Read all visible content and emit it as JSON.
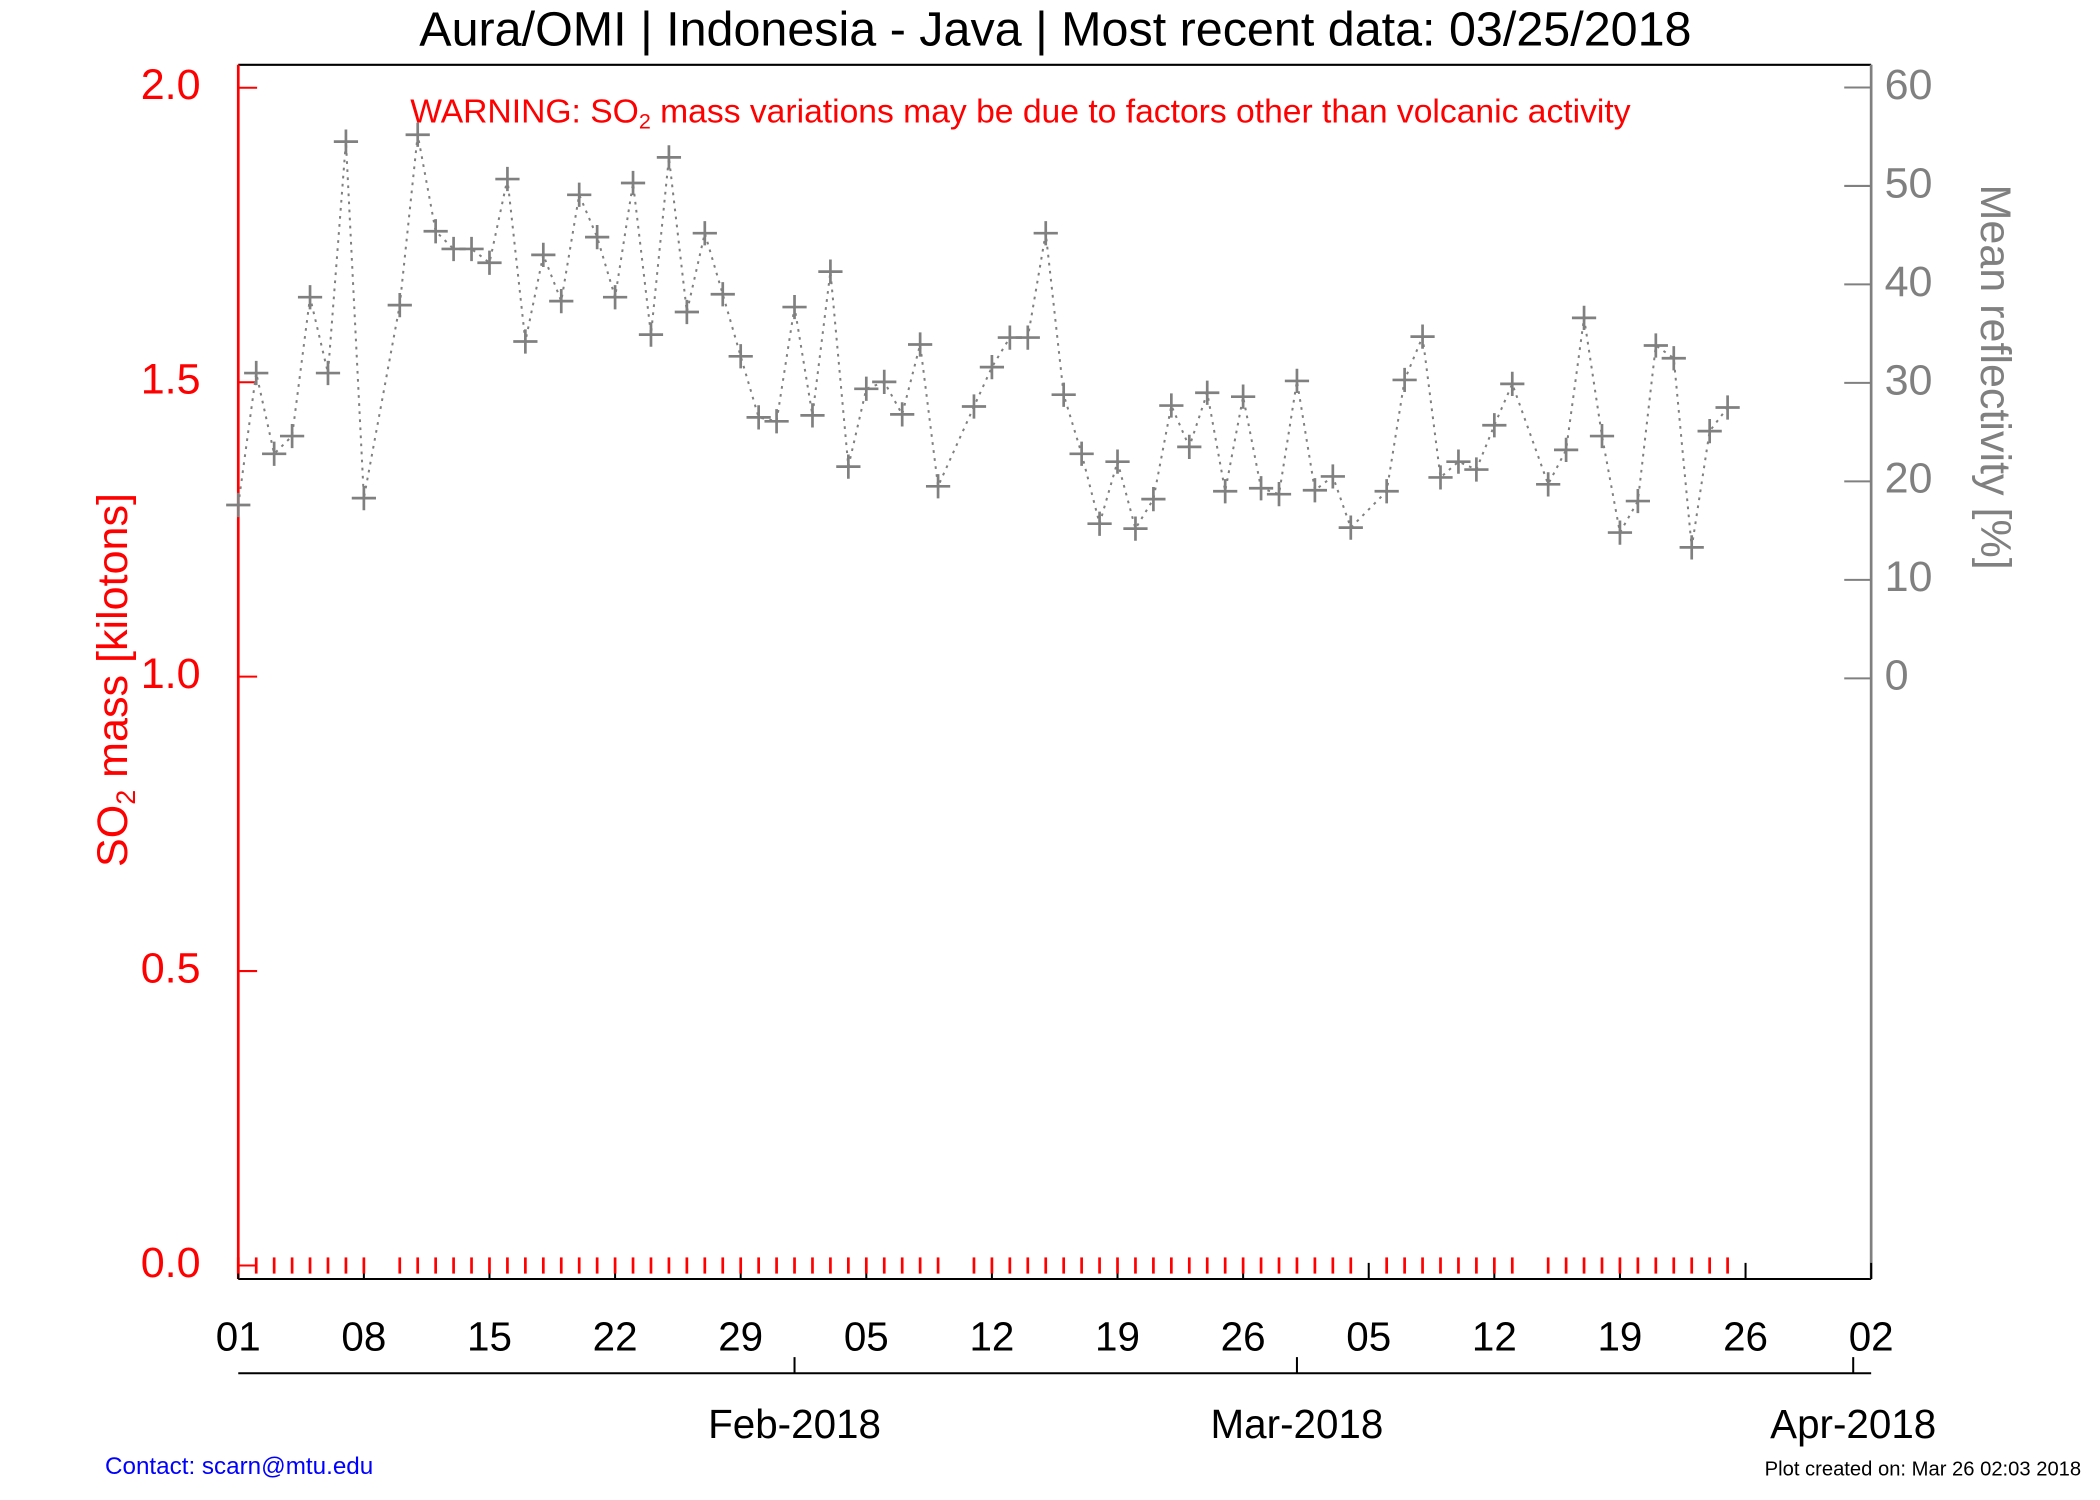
{
  "chart_data": {
    "type": "line",
    "title": "Aura/OMI | Indonesia - Java | Most recent data: 03/25/2018",
    "warning": [
      "WARNING: SO",
      "2",
      " mass variations may be due to factors other than volcanic activity"
    ],
    "y_label": [
      "SO",
      "2",
      " mass [kilotons]"
    ],
    "y2_label": "Mean reflectivity [%]",
    "contact": "Contact: scarn@mtu.edu",
    "created": "Plot created on: Mar 26 02:03 2018",
    "x": [
      "2018-01-01",
      "2018-01-02",
      "2018-01-03",
      "2018-01-04",
      "2018-01-05",
      "2018-01-06",
      "2018-01-07",
      "2018-01-08",
      "2018-01-10",
      "2018-01-11",
      "2018-01-12",
      "2018-01-13",
      "2018-01-14",
      "2018-01-15",
      "2018-01-16",
      "2018-01-17",
      "2018-01-18",
      "2018-01-19",
      "2018-01-20",
      "2018-01-21",
      "2018-01-22",
      "2018-01-23",
      "2018-01-24",
      "2018-01-25",
      "2018-01-26",
      "2018-01-27",
      "2018-01-28",
      "2018-01-29",
      "2018-01-30",
      "2018-01-31",
      "2018-02-01",
      "2018-02-02",
      "2018-02-03",
      "2018-02-04",
      "2018-02-05",
      "2018-02-06",
      "2018-02-07",
      "2018-02-08",
      "2018-02-09",
      "2018-02-11",
      "2018-02-12",
      "2018-02-13",
      "2018-02-14",
      "2018-02-15",
      "2018-02-16",
      "2018-02-17",
      "2018-02-18",
      "2018-02-19",
      "2018-02-20",
      "2018-02-21",
      "2018-02-22",
      "2018-02-23",
      "2018-02-24",
      "2018-02-25",
      "2018-02-26",
      "2018-02-27",
      "2018-02-28",
      "2018-03-01",
      "2018-03-02",
      "2018-03-03",
      "2018-03-04",
      "2018-03-06",
      "2018-03-07",
      "2018-03-08",
      "2018-03-09",
      "2018-03-10",
      "2018-03-11",
      "2018-03-12",
      "2018-03-13",
      "2018-03-15",
      "2018-03-16",
      "2018-03-17",
      "2018-03-18",
      "2018-03-19",
      "2018-03-20",
      "2018-03-21",
      "2018-03-22",
      "2018-03-23",
      "2018-03-24",
      "2018-03-25"
    ],
    "series": [
      {
        "color": "#ff0000",
        "values": [
          0,
          0,
          0,
          0,
          0,
          0,
          0,
          0,
          0,
          0,
          0,
          0,
          0,
          0,
          0,
          0,
          0,
          0,
          0,
          0,
          0,
          0,
          0,
          0,
          0,
          0,
          0,
          0,
          0,
          0,
          0,
          0,
          0,
          0,
          0,
          0,
          0,
          0,
          0,
          0,
          0,
          0,
          0,
          0,
          0,
          0,
          0,
          0,
          0,
          0,
          0,
          0,
          0,
          0,
          0,
          0,
          0,
          0,
          0,
          0,
          0,
          0,
          0,
          0,
          0,
          0,
          0,
          0,
          0,
          0,
          0,
          0,
          0,
          0,
          0,
          0,
          0,
          0,
          0,
          0
        ]
      },
      {
        "color": "#808080",
        "axis": "y2",
        "values": [
          17.6,
          31.0,
          22.8,
          24.6,
          38.7,
          31.0,
          54.5,
          18.3,
          37.9,
          55.2,
          45.4,
          43.6,
          43.6,
          42.2,
          50.7,
          34.2,
          43.0,
          38.3,
          49.1,
          44.8,
          38.7,
          50.3,
          34.9,
          52.9,
          37.2,
          45.2,
          39.0,
          32.7,
          26.5,
          26.1,
          37.7,
          26.7,
          41.3,
          21.5,
          29.4,
          30.1,
          26.8,
          33.9,
          19.5,
          27.6,
          31.6,
          34.6,
          34.6,
          45.2,
          28.8,
          22.8,
          15.7,
          22.0,
          15.2,
          18.2,
          27.7,
          23.5,
          29.0,
          19.0,
          28.6,
          19.3,
          18.7,
          30.2,
          19.1,
          20.5,
          15.3,
          19.0,
          30.3,
          34.7,
          20.4,
          22.0,
          21.2,
          25.7,
          29.9,
          19.7,
          23.2,
          36.6,
          24.6,
          14.8,
          18.0,
          33.8,
          32.5,
          13.3,
          25.1,
          27.5
        ]
      }
    ],
    "xlim": [
      "2018-01-01",
      "2018-04-02"
    ],
    "xticks": [
      {
        "value": "2018-01-01",
        "label": "01"
      },
      {
        "value": "2018-01-08",
        "label": "08"
      },
      {
        "value": "2018-01-15",
        "label": "15"
      },
      {
        "value": "2018-01-22",
        "label": "22"
      },
      {
        "value": "2018-01-29",
        "label": "29"
      },
      {
        "value": "2018-02-05",
        "label": "05"
      },
      {
        "value": "2018-02-12",
        "label": "12"
      },
      {
        "value": "2018-02-19",
        "label": "19"
      },
      {
        "value": "2018-02-26",
        "label": "26"
      },
      {
        "value": "2018-03-05",
        "label": "05"
      },
      {
        "value": "2018-03-12",
        "label": "12"
      },
      {
        "value": "2018-03-19",
        "label": "19"
      },
      {
        "value": "2018-03-26",
        "label": "26"
      },
      {
        "value": "2018-04-02",
        "label": "02"
      }
    ],
    "month_ticks": [
      {
        "value": "2018-02-01",
        "label": "Feb-2018"
      },
      {
        "value": "2018-03-01",
        "label": "Mar-2018"
      },
      {
        "value": "2018-04-01",
        "label": "Apr-2018"
      }
    ],
    "ylim": [
      -0.023,
      2.039
    ],
    "yticks": [
      {
        "value": 0,
        "label": "0.0"
      },
      0.5,
      {
        "value": 1,
        "label": "1.0"
      },
      1.5,
      {
        "value": 2,
        "label": "2.0"
      }
    ],
    "y2lim": [
      -61,
      62.3
    ],
    "y2ticks": [
      0,
      10,
      20,
      30,
      40,
      50,
      60
    ]
  }
}
